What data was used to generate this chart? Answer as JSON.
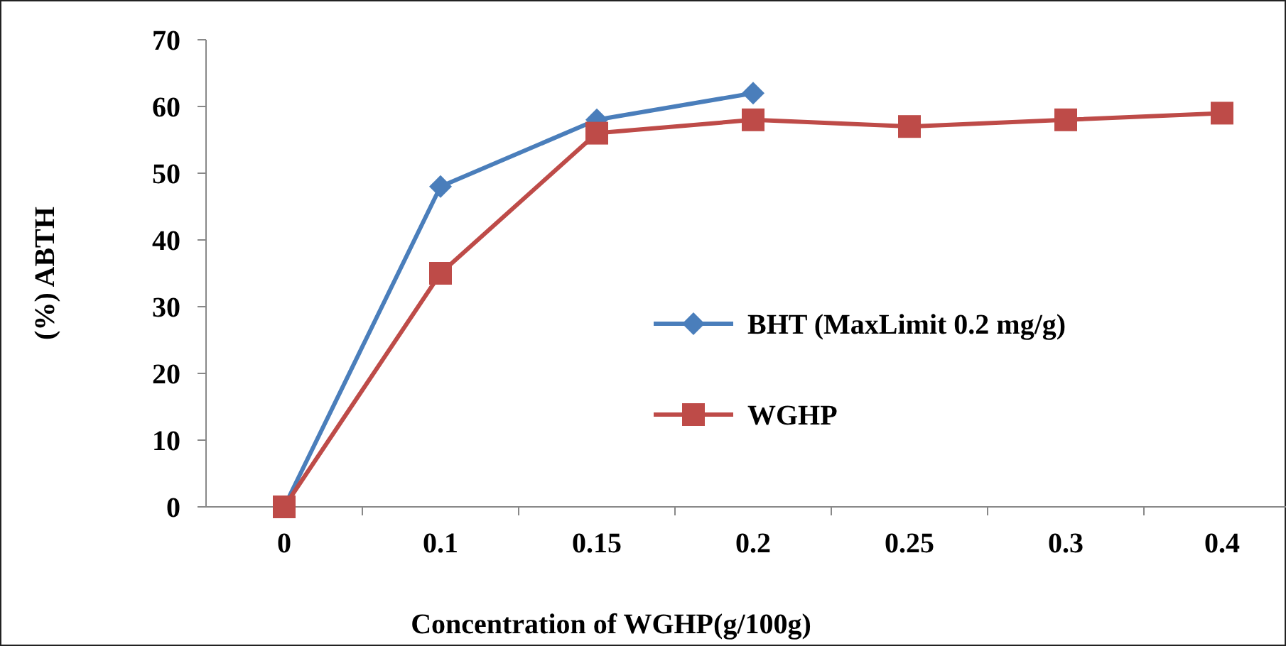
{
  "chart_data": {
    "type": "line",
    "xlabel": "Concentration of WGHP(g/100g)",
    "ylabel": "(%) ABTH",
    "categories": [
      "0",
      "0.1",
      "0.15",
      "0.2",
      "0.25",
      "0.3",
      "0.4"
    ],
    "series": [
      {
        "name": "BHT (MaxLimit 0.2 mg/g)",
        "color": "#4a7ebb",
        "marker": "diamond",
        "values": [
          0,
          48,
          58,
          62,
          null,
          null,
          null
        ]
      },
      {
        "name": "WGHP",
        "color": "#be4b48",
        "marker": "square",
        "values": [
          0,
          35,
          56,
          58,
          57,
          58,
          59
        ]
      }
    ],
    "ylim": [
      0,
      70
    ],
    "yticks": [
      0,
      10,
      20,
      30,
      40,
      50,
      60,
      70
    ],
    "grid": false,
    "legend": "right"
  }
}
